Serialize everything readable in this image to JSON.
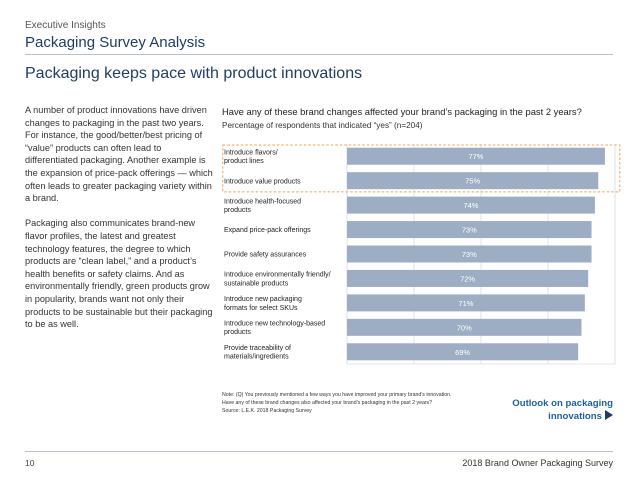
{
  "header": {
    "kicker": "Executive Insights",
    "title": "Packaging Survey Analysis"
  },
  "headline": "Packaging keeps pace with product innovations",
  "body": {
    "paragraphs": [
      "A number of product innovations have driven changes to packaging in the past two years. For instance, the good/better/best pricing of “value” products can often lead to differentiated packaging. Another example is the expansion of price-pack offerings — which often leads to greater packaging variety within a brand.",
      "Packaging also communicates brand-new flavor profiles, the latest and greatest technology features, the degree to which products are “clean label,” and a product’s health benefits or safety claims. And as environmentally friendly, green products grow in popularity, brands want not only their products to be sustainable but their packaging to be as well."
    ]
  },
  "question": "Have any of these brand changes affected your brand’s packaging in the past 2 years?",
  "question_sub": "Percentage of respondents that indicated “yes” (n=204)",
  "chart_data": {
    "type": "bar",
    "orientation": "horizontal",
    "categories": [
      [
        "Introduce flavors/",
        "product lines"
      ],
      [
        "Introduce value products"
      ],
      [
        "Introduce health-focused",
        "products"
      ],
      [
        "Expand price-pack offerings"
      ],
      [
        "Provide safety assurances"
      ],
      [
        "Introduce environmentally friendly/",
        "sustainable products"
      ],
      [
        "Introduce new packaging",
        "formats for select SKUs"
      ],
      [
        "Introduce new technology-based",
        "products"
      ],
      [
        "Provide traceability of",
        "materials/ingredients"
      ]
    ],
    "values": [
      77,
      75,
      74,
      73,
      73,
      72,
      71,
      70,
      69
    ],
    "data_labels": [
      "77%",
      "75%",
      "74%",
      "73%",
      "73%",
      "72%",
      "71%",
      "70%",
      "69%"
    ],
    "xlim": [
      0,
      80
    ],
    "grid": true,
    "highlighted_rows": [
      0,
      1
    ],
    "colors": {
      "bar": "#9daec4",
      "label": "#ffffff",
      "grid": "#c9cfd8",
      "highlight": "#f0a35a"
    }
  },
  "notes": [
    "Note: (Q) You previously mentioned a few ways you have improved your primary brand’s innovation.",
    "Have any of these brand changes also affected your brand’s packaging in the past 2 years?",
    "Source: L.E.K. 2018 Packaging Survey"
  ],
  "outlook": {
    "line1": "Outlook on packaging",
    "line2": "innovations",
    "icon": "play-arrow-icon"
  },
  "footer": {
    "page": "10",
    "name": "2018 Brand Owner Packaging Survey"
  }
}
